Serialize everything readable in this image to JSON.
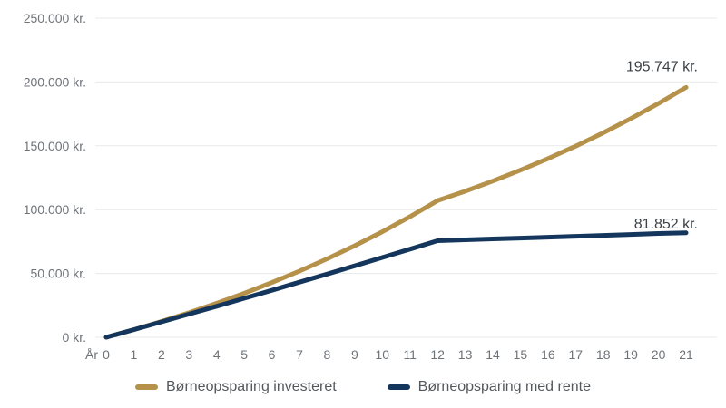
{
  "chart_data": {
    "type": "line",
    "x_label_prefix": "År",
    "x": [
      0,
      1,
      2,
      3,
      4,
      5,
      6,
      7,
      8,
      9,
      10,
      11,
      12,
      13,
      14,
      15,
      16,
      17,
      18,
      19,
      20,
      21
    ],
    "xlim": [
      0,
      21
    ],
    "ylim": [
      0,
      250000
    ],
    "grid": "horizontal",
    "legend_position": "bottom",
    "y_ticks": [
      {
        "value": 0,
        "label": "0 kr."
      },
      {
        "value": 50000,
        "label": "50.000 kr."
      },
      {
        "value": 100000,
        "label": "100.000 kr."
      },
      {
        "value": 150000,
        "label": "150.000 kr."
      },
      {
        "value": 200000,
        "label": "200.000 kr."
      },
      {
        "value": 250000,
        "label": "250.000 kr."
      }
    ],
    "series": [
      {
        "name": "Børneopsparing investeret",
        "color": "#B5914A",
        "values": [
          0,
          6000,
          12417,
          19280,
          26620,
          34470,
          42866,
          51845,
          61448,
          71719,
          82703,
          94451,
          107015,
          114452,
          122407,
          130914,
          140013,
          149744,
          160151,
          171281,
          183185,
          195747
        ]
      },
      {
        "name": "Børneopsparing med rente",
        "color": "#14365C",
        "values": [
          0,
          6000,
          12054,
          18162,
          24325,
          30544,
          36819,
          43150,
          49538,
          55984,
          62488,
          69050,
          75671,
          76352,
          77039,
          77733,
          78432,
          79138,
          79850,
          80569,
          81294,
          81852
        ]
      }
    ],
    "annotations": [
      {
        "text": "195.747 kr.",
        "x": 21,
        "y": 195747,
        "dy": -18
      },
      {
        "text": "81.852 kr.",
        "x": 21,
        "y": 81852,
        "dy": -5
      }
    ]
  },
  "colors": {
    "background": "#FFFFFF",
    "grid": "#E8E9EA",
    "tick_text": "#6E7378",
    "legend_text": "#54595E",
    "annotation_text": "#3C4247",
    "series_gold": "#B5914A",
    "series_navy": "#14365C"
  }
}
